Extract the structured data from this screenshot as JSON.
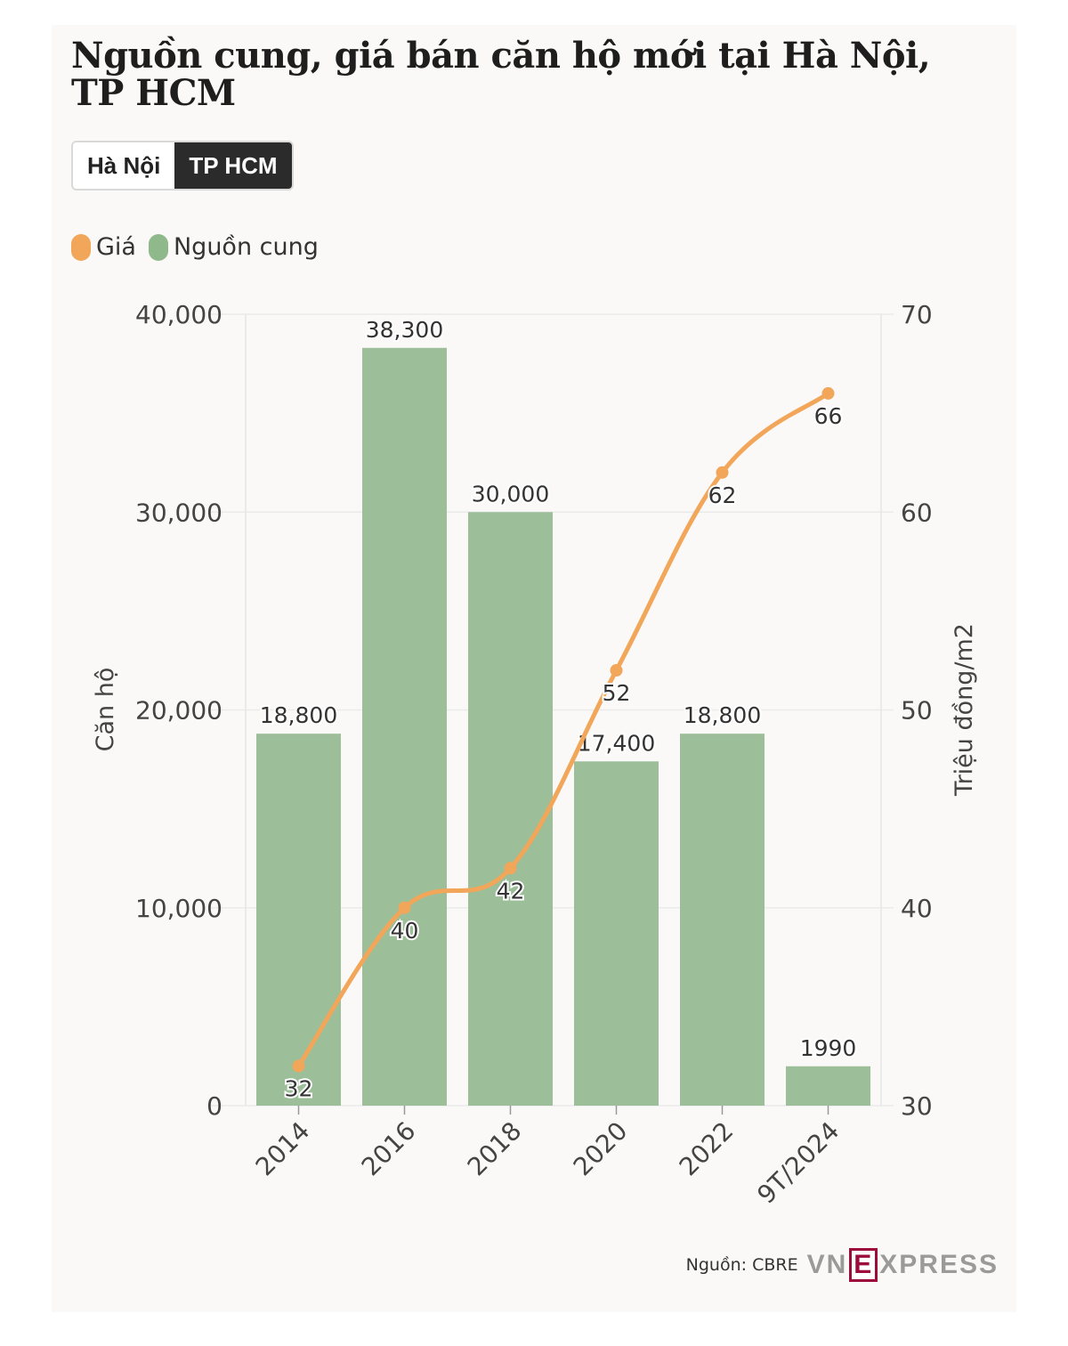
{
  "title": "Nguồn cung, giá bán căn hộ mới tại Hà Nội, TP HCM",
  "tabs": [
    {
      "label": "Hà Nội",
      "active": false
    },
    {
      "label": "TP HCM",
      "active": true
    }
  ],
  "legend": [
    {
      "label": "Giá",
      "color": "#f2a65a"
    },
    {
      "label": "Nguồn cung",
      "color": "#8fb98a"
    }
  ],
  "chart_data": {
    "type": "bar",
    "categories": [
      "2014",
      "2016",
      "2018",
      "2020",
      "2022",
      "9T/2024"
    ],
    "series": [
      {
        "name": "Nguồn cung",
        "type": "bar",
        "axis": "left",
        "color": "#9cbe98",
        "values": [
          18800,
          38300,
          30000,
          17400,
          18800,
          1990
        ],
        "labels": [
          "18,800",
          "38,300",
          "30,000",
          "17,400",
          "18,800",
          "1990"
        ]
      },
      {
        "name": "Giá",
        "type": "line",
        "axis": "right",
        "color": "#f2a65a",
        "values": [
          32,
          40,
          42,
          52,
          62,
          66
        ],
        "labels": [
          "32",
          "40",
          "42",
          "52",
          "62",
          "66"
        ]
      }
    ],
    "y_left": {
      "label": "Căn hộ",
      "range": [
        0,
        40000
      ],
      "ticks": [
        0,
        10000,
        20000,
        30000,
        40000
      ],
      "tick_labels": [
        "0",
        "10,000",
        "20,000",
        "30,000",
        "40,000"
      ]
    },
    "y_right": {
      "label": "Triệu đồng/m2",
      "range": [
        30,
        70
      ],
      "ticks": [
        30,
        40,
        50,
        60,
        70
      ],
      "tick_labels": [
        "30",
        "40",
        "50",
        "60",
        "70"
      ]
    },
    "grid": true
  },
  "footer": {
    "source": "Nguồn: CBRE",
    "logo_left": "VN",
    "logo_box": "E",
    "logo_right": "XPRESS"
  }
}
